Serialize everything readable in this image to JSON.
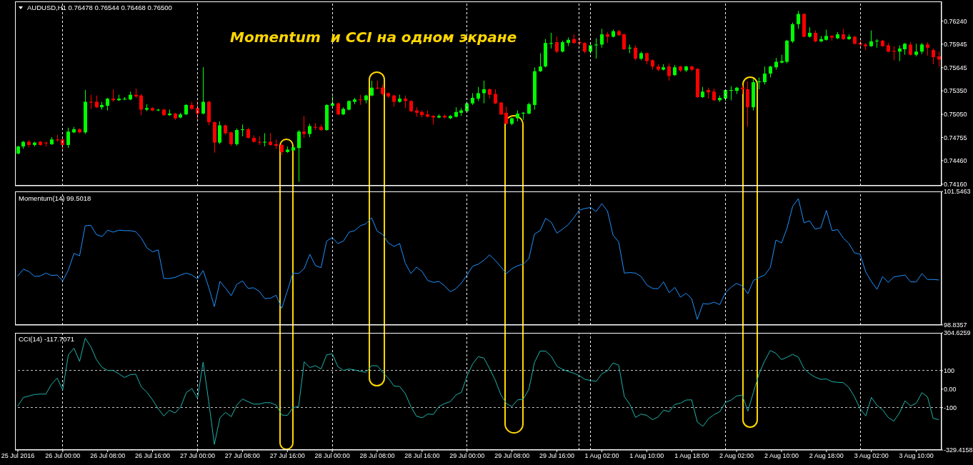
{
  "chart_data": [
    {
      "type": "candlestick",
      "title": "AUDUSD,H1 0.76478 0.76544 0.76468 0.76500",
      "annotations": [
        "Momentum  и CCI на одном экране"
      ],
      "categories": [
        null,
        null,
        null,
        null,
        null,
        null,
        null,
        null,
        null,
        null,
        null,
        null,
        null,
        null,
        null,
        null,
        null,
        null,
        null,
        null,
        null,
        null,
        null,
        null,
        null,
        null,
        null,
        null,
        null,
        null,
        null,
        null,
        null,
        null,
        null,
        null,
        null,
        null,
        null,
        null,
        null,
        null,
        null,
        null,
        null,
        null,
        null,
        null,
        null,
        null,
        null,
        null,
        null,
        null,
        null,
        null,
        null,
        null,
        null,
        null,
        null,
        null,
        null,
        null,
        null,
        null,
        null,
        null,
        null,
        null,
        null,
        null,
        null,
        null,
        null,
        null,
        null,
        null,
        null,
        null,
        null,
        null,
        null,
        null,
        null,
        null,
        null,
        null,
        null,
        null,
        null,
        null,
        null,
        null,
        null,
        null,
        null,
        null,
        null,
        null,
        null,
        null,
        null,
        null,
        null,
        null,
        null,
        null,
        null,
        null,
        null,
        null,
        null,
        null,
        null,
        null,
        null,
        null,
        null,
        null,
        null,
        null,
        null,
        null,
        null,
        null,
        null,
        null,
        null,
        null,
        null,
        null,
        null,
        null,
        null,
        null,
        null,
        null,
        null,
        null,
        null,
        null,
        null,
        null,
        null,
        null,
        null,
        null,
        null,
        null,
        null,
        null,
        null,
        null,
        null,
        null,
        null,
        null,
        null,
        null,
        null,
        null,
        null,
        null,
        null
      ],
      "ohlc": [
        [
          0.7455,
          0.7465,
          0.7454,
          0.7464
        ],
        [
          0.7464,
          0.7471,
          0.7461,
          0.747
        ],
        [
          0.747,
          0.7472,
          0.7463,
          0.7466
        ],
        [
          0.7466,
          0.747,
          0.7464,
          0.7469
        ],
        [
          0.747,
          0.7471,
          0.7465,
          0.7466
        ],
        [
          0.7469,
          0.747,
          0.7464,
          0.7468
        ],
        [
          0.7467,
          0.7476,
          0.7466,
          0.7473
        ],
        [
          0.7473,
          0.7479,
          0.747,
          0.7472
        ],
        [
          0.7473,
          0.7474,
          0.746,
          0.7466
        ],
        [
          0.7466,
          0.7488,
          0.7462,
          0.7483
        ],
        [
          0.7482,
          0.7489,
          0.7481,
          0.7486
        ],
        [
          0.7486,
          0.7487,
          0.7481,
          0.7482
        ],
        [
          0.7482,
          0.7536,
          0.748,
          0.7521
        ],
        [
          0.7521,
          0.753,
          0.7512,
          0.752
        ],
        [
          0.7521,
          0.7529,
          0.7513,
          0.7514
        ],
        [
          0.7514,
          0.7521,
          0.7511,
          0.7517
        ],
        [
          0.7516,
          0.7526,
          0.751,
          0.7525
        ],
        [
          0.7525,
          0.7537,
          0.7521,
          0.7523
        ],
        [
          0.7523,
          0.753,
          0.7522,
          0.7525
        ],
        [
          0.7524,
          0.7527,
          0.7523,
          0.7525
        ],
        [
          0.7524,
          0.7534,
          0.7523,
          0.753
        ],
        [
          0.753,
          0.7538,
          0.7526,
          0.7528
        ],
        [
          0.7529,
          0.7531,
          0.7504,
          0.7511
        ],
        [
          0.7511,
          0.7518,
          0.7509,
          0.7513
        ],
        [
          0.7513,
          0.7514,
          0.7509,
          0.751
        ],
        [
          0.751,
          0.7512,
          0.7509,
          0.7511
        ],
        [
          0.7511,
          0.7512,
          0.7503,
          0.7504
        ],
        [
          0.7504,
          0.7511,
          0.7503,
          0.7506
        ],
        [
          0.7506,
          0.7507,
          0.7498,
          0.75
        ],
        [
          0.7501,
          0.7507,
          0.75,
          0.7505
        ],
        [
          0.7505,
          0.7518,
          0.7504,
          0.7517
        ],
        [
          0.7517,
          0.7521,
          0.7511,
          0.7512
        ],
        [
          0.7513,
          0.7522,
          0.7498,
          0.7506
        ],
        [
          0.7506,
          0.7565,
          0.7505,
          0.7521
        ],
        [
          0.7521,
          0.7522,
          0.7491,
          0.7495
        ],
        [
          0.7495,
          0.7496,
          0.7456,
          0.7469
        ],
        [
          0.7469,
          0.7496,
          0.7467,
          0.7491
        ],
        [
          0.7491,
          0.7492,
          0.7479,
          0.7481
        ],
        [
          0.7482,
          0.7483,
          0.7465,
          0.7467
        ],
        [
          0.7467,
          0.7487,
          0.7465,
          0.7485
        ],
        [
          0.7485,
          0.7492,
          0.7477,
          0.7486
        ],
        [
          0.7486,
          0.7488,
          0.7474,
          0.7475
        ],
        [
          0.7475,
          0.7478,
          0.7469,
          0.747
        ],
        [
          0.747,
          0.7477,
          0.7466,
          0.7469
        ],
        [
          0.7469,
          0.7481,
          0.7464,
          0.747
        ],
        [
          0.747,
          0.7481,
          0.7465,
          0.7466
        ],
        [
          0.7467,
          0.7473,
          0.7461,
          0.7465
        ],
        [
          0.7466,
          0.7467,
          0.7453,
          0.7457
        ],
        [
          0.7457,
          0.7464,
          0.7456,
          0.746
        ],
        [
          0.7459,
          0.7464,
          0.7458,
          0.7463
        ],
        [
          0.7462,
          0.7485,
          0.7419,
          0.7483
        ],
        [
          0.7483,
          0.7503,
          0.7475,
          0.748
        ],
        [
          0.748,
          0.7493,
          0.7476,
          0.749
        ],
        [
          0.7489,
          0.7494,
          0.7485,
          0.7488
        ],
        [
          0.7489,
          0.7492,
          0.7484,
          0.7485
        ],
        [
          0.7485,
          0.7518,
          0.7484,
          0.7517
        ],
        [
          0.7516,
          0.7528,
          0.7515,
          0.7519
        ],
        [
          0.7519,
          0.752,
          0.7504,
          0.7505
        ],
        [
          0.7505,
          0.7514,
          0.7504,
          0.7512
        ],
        [
          0.7511,
          0.7523,
          0.751,
          0.7522
        ],
        [
          0.7521,
          0.7526,
          0.7518,
          0.7524
        ],
        [
          0.7524,
          0.753,
          0.7517,
          0.7523
        ],
        [
          0.7523,
          0.753,
          0.7519,
          0.7529
        ],
        [
          0.7529,
          0.7548,
          0.7528,
          0.7539
        ],
        [
          0.7539,
          0.7548,
          0.7537,
          0.7538
        ],
        [
          0.7539,
          0.7543,
          0.7529,
          0.7531
        ],
        [
          0.7532,
          0.7533,
          0.7526,
          0.7528
        ],
        [
          0.7529,
          0.753,
          0.7515,
          0.7521
        ],
        [
          0.7521,
          0.753,
          0.752,
          0.7525
        ],
        [
          0.7525,
          0.7529,
          0.7513,
          0.7522
        ],
        [
          0.7522,
          0.7523,
          0.7508,
          0.7509
        ],
        [
          0.751,
          0.7514,
          0.7502,
          0.7507
        ],
        [
          0.7508,
          0.751,
          0.7501,
          0.7504
        ],
        [
          0.7505,
          0.751,
          0.7501,
          0.7502
        ],
        [
          0.7503,
          0.7504,
          0.7492,
          0.7501
        ],
        [
          0.7501,
          0.7505,
          0.75,
          0.7503
        ],
        [
          0.7503,
          0.7505,
          0.75,
          0.7501
        ],
        [
          0.75,
          0.7504,
          0.7499,
          0.7503
        ],
        [
          0.7502,
          0.7514,
          0.7501,
          0.7508
        ],
        [
          0.7507,
          0.7513,
          0.7503,
          0.751
        ],
        [
          0.7509,
          0.7521,
          0.7508,
          0.7519
        ],
        [
          0.7519,
          0.7532,
          0.7517,
          0.7526
        ],
        [
          0.7525,
          0.754,
          0.7522,
          0.7532
        ],
        [
          0.7532,
          0.7548,
          0.7519,
          0.7537
        ],
        [
          0.7537,
          0.7538,
          0.7525,
          0.753
        ],
        [
          0.7531,
          0.7537,
          0.7518,
          0.7519
        ],
        [
          0.752,
          0.7521,
          0.7504,
          0.7505
        ],
        [
          0.7507,
          0.7515,
          0.7492,
          0.7493
        ],
        [
          0.7493,
          0.7501,
          0.7491,
          0.75
        ],
        [
          0.75,
          0.751,
          0.7496,
          0.7506
        ],
        [
          0.7506,
          0.7508,
          0.7498,
          0.7507
        ],
        [
          0.7506,
          0.752,
          0.7505,
          0.7518
        ],
        [
          0.7517,
          0.7565,
          0.7511,
          0.756
        ],
        [
          0.756,
          0.7583,
          0.7559,
          0.7566
        ],
        [
          0.7566,
          0.7601,
          0.7565,
          0.7596
        ],
        [
          0.7595,
          0.7609,
          0.7589,
          0.7596
        ],
        [
          0.7597,
          0.7604,
          0.7583,
          0.7585
        ],
        [
          0.7585,
          0.7599,
          0.7584,
          0.7597
        ],
        [
          0.7596,
          0.7603,
          0.7592,
          0.76
        ],
        [
          0.7601,
          0.7607,
          0.7595,
          0.7596
        ],
        [
          0.7597,
          0.7603,
          0.7593,
          0.7596
        ],
        [
          0.7596,
          0.7597,
          0.7583,
          0.7585
        ],
        [
          0.7585,
          0.7596,
          0.7582,
          0.7593
        ],
        [
          0.7593,
          0.7602,
          0.7576,
          0.7594
        ],
        [
          0.7594,
          0.7614,
          0.759,
          0.7607
        ],
        [
          0.7607,
          0.761,
          0.7596,
          0.7604
        ],
        [
          0.7604,
          0.7613,
          0.7603,
          0.7611
        ],
        [
          0.7611,
          0.7613,
          0.7605,
          0.7606
        ],
        [
          0.7607,
          0.7608,
          0.7587,
          0.7588
        ],
        [
          0.7589,
          0.7594,
          0.7583,
          0.759
        ],
        [
          0.759,
          0.7593,
          0.7574,
          0.7576
        ],
        [
          0.7576,
          0.7585,
          0.7574,
          0.7583
        ],
        [
          0.7583,
          0.7584,
          0.7569,
          0.7573
        ],
        [
          0.7574,
          0.7575,
          0.7562,
          0.7566
        ],
        [
          0.7566,
          0.7569,
          0.756,
          0.7562
        ],
        [
          0.7562,
          0.7569,
          0.7561,
          0.7565
        ],
        [
          0.7566,
          0.757,
          0.7548,
          0.7554
        ],
        [
          0.7555,
          0.7568,
          0.7554,
          0.7565
        ],
        [
          0.7566,
          0.7567,
          0.7559,
          0.7561
        ],
        [
          0.7561,
          0.7567,
          0.7559,
          0.7566
        ],
        [
          0.7566,
          0.7567,
          0.756,
          0.7562
        ],
        [
          0.7563,
          0.7564,
          0.7526,
          0.7527
        ],
        [
          0.7527,
          0.754,
          0.7526,
          0.7534
        ],
        [
          0.7536,
          0.7539,
          0.7525,
          0.7533
        ],
        [
          0.7534,
          0.7538,
          0.7522,
          0.7523
        ],
        [
          0.7523,
          0.7529,
          0.7521,
          0.7526
        ],
        [
          0.7525,
          0.7537,
          0.7522,
          0.7536
        ],
        [
          0.7535,
          0.7541,
          0.7523,
          0.7536
        ],
        [
          0.7535,
          0.754,
          0.7531,
          0.7539
        ],
        [
          0.7539,
          0.7542,
          0.7531,
          0.7537
        ],
        [
          0.7537,
          0.7547,
          0.7489,
          0.7514
        ],
        [
          0.7514,
          0.755,
          0.751,
          0.7546
        ],
        [
          0.7546,
          0.7552,
          0.7537,
          0.7547
        ],
        [
          0.7546,
          0.7566,
          0.7543,
          0.7557
        ],
        [
          0.7557,
          0.7567,
          0.7552,
          0.7566
        ],
        [
          0.7565,
          0.7577,
          0.7562,
          0.7572
        ],
        [
          0.7571,
          0.7581,
          0.757,
          0.7573
        ],
        [
          0.7572,
          0.76,
          0.757,
          0.7599
        ],
        [
          0.7598,
          0.7622,
          0.7596,
          0.762
        ],
        [
          0.762,
          0.7637,
          0.7614,
          0.7633
        ],
        [
          0.7633,
          0.7634,
          0.7603,
          0.7604
        ],
        [
          0.7604,
          0.7616,
          0.7603,
          0.7609
        ],
        [
          0.7609,
          0.7612,
          0.7597,
          0.7598
        ],
        [
          0.7598,
          0.7605,
          0.7597,
          0.7601
        ],
        [
          0.76,
          0.7613,
          0.7599,
          0.7605
        ],
        [
          0.7605,
          0.7606,
          0.7599,
          0.7603
        ],
        [
          0.7602,
          0.761,
          0.7601,
          0.7607
        ],
        [
          0.7607,
          0.7614,
          0.76,
          0.7601
        ],
        [
          0.7601,
          0.7607,
          0.76,
          0.7604
        ],
        [
          0.7604,
          0.7605,
          0.7594,
          0.7595
        ],
        [
          0.7596,
          0.7601,
          0.7589,
          0.7594
        ],
        [
          0.7594,
          0.7596,
          0.7587,
          0.7592
        ],
        [
          0.7592,
          0.7612,
          0.7591,
          0.7598
        ],
        [
          0.7598,
          0.7601,
          0.759,
          0.7599
        ],
        [
          0.7599,
          0.76,
          0.7591,
          0.7592
        ],
        [
          0.7593,
          0.7596,
          0.7584,
          0.7585
        ],
        [
          0.7586,
          0.7592,
          0.7574,
          0.7585
        ],
        [
          0.7585,
          0.7593,
          0.7573,
          0.7589
        ],
        [
          0.7588,
          0.7596,
          0.7581,
          0.7595
        ],
        [
          0.7594,
          0.7597,
          0.758,
          0.7581
        ],
        [
          0.7581,
          0.7595,
          0.7579,
          0.7585
        ],
        [
          0.7585,
          0.7596,
          0.7582,
          0.7594
        ],
        [
          0.7594,
          0.7597,
          0.758,
          0.759
        ],
        [
          0.7587,
          0.7589,
          0.7569,
          0.7578
        ],
        [
          0.7579,
          0.7585,
          0.7566,
          0.7575
        ]
      ],
      "colors": [
        "#00ff00",
        "#00ff00",
        "#ff0000",
        "#00ff00",
        "#ff0000",
        "#ff0000",
        "#00ff00",
        "#ff0000",
        "#ff0000",
        "#00ff00",
        "#00ff00",
        "#ff0000",
        "#00ff00",
        "#ff0000",
        "#ff0000",
        "#00ff00",
        "#00ff00",
        "#ff0000",
        "#00ff00",
        "#00ff00",
        "#00ff00",
        "#ff0000",
        "#ff0000",
        "#00ff00",
        "#ff0000",
        "#00ff00",
        "#ff0000",
        "#00ff00",
        "#ff0000",
        "#00ff00",
        "#00ff00",
        "#ff0000",
        "#ff0000",
        "#00ff00",
        "#ff0000",
        "#ff0000",
        "#00ff00",
        "#ff0000",
        "#ff0000",
        "#00ff00",
        "#00ff00",
        "#ff0000",
        "#ff0000",
        "#ff0000",
        "#00ff00",
        "#ff0000",
        "#ff0000",
        "#ff0000",
        "#00ff00",
        "#00ff00",
        "#00ff00",
        "#ff0000",
        "#00ff00",
        "#ff0000",
        "#ff0000",
        "#00ff00",
        "#00ff00",
        "#ff0000",
        "#00ff00",
        "#00ff00",
        "#00ff00",
        "#ff0000",
        "#00ff00",
        "#00ff00",
        "#ff0000",
        "#ff0000",
        "#ff0000",
        "#ff0000",
        "#00ff00",
        "#ff0000",
        "#ff0000",
        "#ff0000",
        "#ff0000",
        "#ff0000",
        "#ff0000",
        "#00ff00",
        "#ff0000",
        "#00ff00",
        "#00ff00",
        "#00ff00",
        "#00ff00",
        "#00ff00",
        "#00ff00",
        "#00ff00",
        "#ff0000",
        "#ff0000",
        "#ff0000",
        "#ff0000",
        "#00ff00",
        "#00ff00",
        "#00ff00",
        "#00ff00",
        "#00ff00",
        "#00ff00",
        "#00ff00",
        "#00ff00",
        "#ff0000",
        "#00ff00",
        "#00ff00",
        "#ff0000",
        "#ff0000",
        "#ff0000",
        "#00ff00",
        "#00ff00",
        "#00ff00",
        "#ff0000",
        "#00ff00",
        "#ff0000",
        "#ff0000",
        "#00ff00",
        "#ff0000",
        "#00ff00",
        "#ff0000",
        "#ff0000",
        "#ff0000",
        "#00ff00",
        "#ff0000",
        "#00ff00",
        "#ff0000",
        "#00ff00",
        "#ff0000",
        "#ff0000",
        "#00ff00",
        "#ff0000",
        "#ff0000",
        "#00ff00",
        "#00ff00",
        "#00ff00",
        "#00ff00",
        "#ff0000",
        "#ff0000",
        "#00ff00",
        "#00ff00",
        "#00ff00",
        "#00ff00",
        "#00ff00",
        "#00ff00",
        "#00ff00",
        "#00ff00",
        "#00ff00",
        "#ff0000",
        "#00ff00",
        "#ff0000",
        "#00ff00",
        "#00ff00",
        "#ff0000",
        "#00ff00",
        "#ff0000",
        "#00ff00",
        "#ff0000",
        "#ff0000",
        "#ff0000",
        "#00ff00",
        "#00ff00",
        "#ff0000",
        "#ff0000",
        "#ff0000",
        "#00ff00",
        "#00ff00",
        "#ff0000",
        "#00ff00",
        "#00ff00",
        "#ff0000",
        "#ff0000",
        "#ff0000"
      ],
      "ylim": [
        0.7414,
        0.7649
      ],
      "yticks": [
        {
          "value": 0.7416,
          "label": "0.74160"
        },
        {
          "value": 0.7446,
          "label": "0.74460"
        },
        0.74755,
        {
          "value": 0.7505,
          "label": "0.75050"
        },
        {
          "value": 0.7535,
          "label": "0.75350"
        },
        0.75645,
        0.75945,
        {
          "value": 0.7624,
          "label": "0.76240"
        }
      ],
      "tick_labels": "y"
    },
    {
      "type": "line",
      "title": "Momentum(14) 99.5018",
      "categories": [
        null,
        null,
        null,
        null,
        null,
        null,
        null,
        null,
        null,
        null,
        null,
        null,
        null,
        null,
        null,
        null,
        null,
        null,
        null,
        null,
        null,
        null,
        null,
        null,
        null,
        null,
        null,
        null,
        null,
        null,
        null,
        null,
        null,
        null,
        null,
        null,
        null,
        null,
        null,
        null,
        null,
        null,
        null,
        null,
        null,
        null,
        null,
        null,
        null,
        null,
        null,
        null,
        null,
        null,
        null,
        null,
        null,
        null,
        null,
        null,
        null,
        null,
        null,
        null,
        null,
        null,
        null,
        null,
        null,
        null,
        null,
        null,
        null,
        null,
        null,
        null,
        null,
        null,
        null,
        null,
        null,
        null,
        null,
        null,
        null,
        null,
        null,
        null,
        null,
        null,
        null,
        null,
        null,
        null,
        null,
        null,
        null,
        null,
        null,
        null,
        null,
        null,
        null,
        null,
        null,
        null,
        null,
        null,
        null,
        null,
        null,
        null,
        null,
        null,
        null,
        null,
        null,
        null,
        null,
        null,
        null,
        null,
        null,
        null,
        null,
        null,
        null,
        null,
        null,
        null,
        null,
        null,
        null,
        null,
        null,
        null,
        null,
        null,
        null,
        null,
        null,
        null,
        null,
        null,
        null,
        null,
        null,
        null,
        null,
        null,
        null,
        null,
        null,
        null,
        null,
        null,
        null,
        null,
        null,
        null,
        null,
        null,
        null,
        null,
        null
      ],
      "color": "#1e90ff",
      "values": [
        99.83,
        99.97,
        99.92,
        99.82,
        99.83,
        99.89,
        99.84,
        99.85,
        99.73,
        99.95,
        100.29,
        100.24,
        100.85,
        100.86,
        100.67,
        100.63,
        100.76,
        100.72,
        100.76,
        100.75,
        100.75,
        100.73,
        100.6,
        100.4,
        100.32,
        100.36,
        99.78,
        99.78,
        99.8,
        99.85,
        99.89,
        99.85,
        99.77,
        99.94,
        99.6,
        99.21,
        99.72,
        99.58,
        99.43,
        99.66,
        99.73,
        99.58,
        99.59,
        99.52,
        99.37,
        99.38,
        99.44,
        99.17,
        99.53,
        99.89,
        99.88,
        99.98,
        100.27,
        100.04,
        100,
        100.54,
        100.61,
        100.49,
        100.54,
        100.72,
        100.75,
        100.85,
        100.89,
        101.01,
        100.74,
        100.67,
        100.5,
        100.43,
        100.49,
        100.09,
        99.88,
        100.01,
        99.92,
        99.74,
        99.7,
        99.72,
        99.63,
        99.51,
        99.57,
        99.69,
        99.85,
        100.03,
        100.07,
        100.15,
        100.26,
        100.15,
        100.02,
        99.88,
        99.98,
        100.04,
        100.07,
        100.18,
        100.68,
        100.75,
        101,
        100.92,
        100.7,
        100.78,
        100.87,
        101.01,
        101.17,
        101.2,
        101.22,
        101.14,
        101.3,
        101.15,
        100.66,
        100.52,
        99.89,
        99.9,
        99.89,
        99.82,
        99.65,
        99.58,
        99.57,
        99.71,
        99.49,
        99.6,
        99.4,
        99.48,
        99.37,
        98.95,
        99.27,
        99.26,
        99.3,
        99.25,
        99.49,
        99.6,
        99.68,
        99.63,
        99.47,
        99.74,
        99.8,
        99.85,
        100,
        100.56,
        100.5,
        100.81,
        101.25,
        101.4,
        100.91,
        100.95,
        100.78,
        100.81,
        101.16,
        100.75,
        100.77,
        100.6,
        100.49,
        100.3,
        100.27,
        99.91,
        99.72,
        99.56,
        99.82,
        99.7,
        99.81,
        99.83,
        99.85,
        99.71,
        99.71,
        99.88,
        99.76,
        99.76,
        99.75
      ],
      "ylim": [
        98.8357,
        101.5463
      ],
      "yticks": [
        98.8357,
        101.5463
      ],
      "tick_labels": "y"
    },
    {
      "type": "line",
      "title": "CCI(14) -117.7071",
      "categories": [
        "25 Jul 2016",
        null,
        null,
        null,
        null,
        null,
        null,
        null,
        "26 Jul 00:00",
        null,
        null,
        null,
        null,
        null,
        null,
        null,
        "26 Jul 08:00",
        null,
        null,
        null,
        null,
        null,
        null,
        null,
        "26 Jul 16:00",
        null,
        null,
        null,
        null,
        null,
        null,
        null,
        "27 Jul 00:00",
        null,
        null,
        null,
        null,
        null,
        null,
        null,
        "27 Jul 08:00",
        null,
        null,
        null,
        null,
        null,
        null,
        null,
        "27 Jul 16:00",
        null,
        null,
        null,
        null,
        null,
        null,
        null,
        "28 Jul 00:00",
        null,
        null,
        null,
        null,
        null,
        null,
        null,
        "28 Jul 08:00",
        null,
        null,
        null,
        null,
        null,
        null,
        null,
        "28 Jul 16:00",
        null,
        null,
        null,
        null,
        null,
        null,
        null,
        "29 Jul 00:00",
        null,
        null,
        null,
        null,
        null,
        null,
        null,
        "29 Jul 08:00",
        null,
        null,
        null,
        null,
        null,
        null,
        null,
        "29 Jul 16:00",
        null,
        null,
        null,
        null,
        null,
        null,
        null,
        "1 Aug 02:00",
        null,
        null,
        null,
        null,
        null,
        null,
        null,
        "1 Aug 10:00",
        null,
        null,
        null,
        null,
        null,
        null,
        null,
        "1 Aug 18:00",
        null,
        null,
        null,
        null,
        null,
        null,
        null,
        "2 Aug 02:00",
        null,
        null,
        null,
        null,
        null,
        null,
        null,
        "2 Aug 10:00",
        null,
        null,
        null,
        null,
        null,
        null,
        null,
        "2 Aug 18:00",
        null,
        null,
        null,
        null,
        null,
        null,
        null,
        "3 Aug 02:00",
        null,
        null,
        null,
        null,
        null,
        null,
        null,
        "3 Aug 10:00",
        null,
        null,
        null,
        null
      ],
      "color": "#20b2aa",
      "values": [
        -91,
        -45,
        -37,
        -29,
        -27,
        -27,
        27,
        60,
        -4,
        186,
        222,
        150,
        276,
        230,
        160,
        118,
        101,
        101,
        83,
        63,
        78,
        81,
        12,
        -17,
        -58,
        -106,
        -145,
        -114,
        -129,
        -96,
        -19,
        3,
        -49,
        146,
        -68,
        -299,
        -155,
        -126,
        -149,
        -87,
        -53,
        -68,
        -81,
        -81,
        -73,
        -74,
        -86,
        -140,
        -142,
        -100,
        -94,
        148,
        117,
        127,
        109,
        186,
        191,
        122,
        101,
        109,
        104,
        96,
        91,
        127,
        127,
        91,
        58,
        17,
        14,
        -24,
        -94,
        -147,
        -155,
        -135,
        -137,
        -94,
        -78,
        -68,
        -32,
        -17,
        71,
        137,
        176,
        168,
        112,
        50,
        -29,
        -78,
        -94,
        -58,
        -55,
        -1,
        144,
        206,
        206,
        178,
        124,
        107,
        96,
        86,
        73,
        53,
        47,
        42,
        83,
        99,
        142,
        130,
        -40,
        -83,
        -153,
        -135,
        -142,
        -165,
        -151,
        -114,
        -122,
        -83,
        -76,
        -59,
        -58,
        -178,
        -201,
        -160,
        -138,
        -122,
        -72,
        -60,
        -37,
        -32,
        -119,
        -17,
        83,
        153,
        209,
        194,
        160,
        173,
        188,
        173,
        112,
        83,
        65,
        53,
        55,
        40,
        37,
        35,
        9,
        -42,
        -106,
        -145,
        -45,
        -88,
        -112,
        -153,
        -173,
        -129,
        -63,
        -91,
        -76,
        -19,
        -42,
        -158,
        -165
      ],
      "ylim": [
        -329.4158,
        304.6259
      ],
      "yticks": [
        -329.4158,
        -100,
        {
          "value": 0,
          "label": "0.00"
        },
        100,
        304.6259
      ],
      "ref_lines": [
        {
          "axis": "y",
          "value": 100,
          "color": "#c0c0c0",
          "line_style": "dashed"
        },
        {
          "axis": "y",
          "value": -100,
          "color": "#c0c0c0",
          "line_style": "dashed"
        },
        {
          "axis": "x",
          "value": "26 Jul 00:00",
          "color": "#ffffff",
          "line_style": "dashed"
        },
        {
          "axis": "x",
          "value": "27 Jul 00:00",
          "color": "#ffffff",
          "line_style": "dashed"
        },
        {
          "axis": "x",
          "value": "28 Jul 00:00",
          "color": "#ffffff",
          "line_style": "dashed"
        },
        {
          "axis": "x",
          "value": "29 Jul 00:00",
          "color": "#ffffff",
          "line_style": "dashed"
        }
      ]
    }
  ]
}
